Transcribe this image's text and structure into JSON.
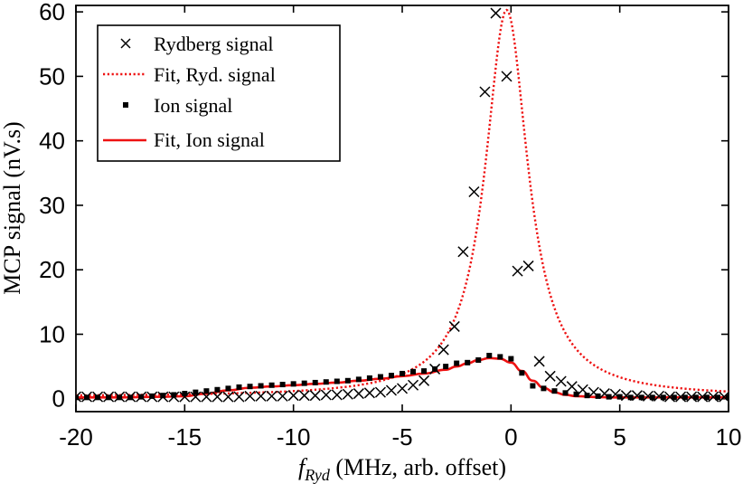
{
  "chart_data": {
    "type": "scatter",
    "xlabel_symbol": "f",
    "xlabel_subscript": "Ryd",
    "xlabel_rest": " (MHz, arb. offset)",
    "ylabel": "MCP signal (nV.s)",
    "xlim": [
      -20,
      10
    ],
    "ylim": [
      -2,
      61
    ],
    "x_ticks": [
      -20,
      -15,
      -10,
      -5,
      0,
      5,
      10
    ],
    "y_ticks": [
      0,
      10,
      20,
      30,
      40,
      50,
      60
    ],
    "legend": {
      "position": "top-left",
      "entries": [
        "Rydberg signal",
        "Fit, Ryd. signal",
        "Ion signal",
        "Fit, Ion signal"
      ]
    },
    "colors": {
      "fit": "#ee1111",
      "marker": "#000000"
    },
    "series": [
      {
        "name": "Rydberg signal",
        "marker": "x",
        "x": [
          -20,
          -19.5,
          -19,
          -18.5,
          -18,
          -17.5,
          -17,
          -16.5,
          -16,
          -15.5,
          -15,
          -14.5,
          -14,
          -13.5,
          -13,
          -12.5,
          -12,
          -11.5,
          -11,
          -10.5,
          -10,
          -9.5,
          -9,
          -8.5,
          -8,
          -7.5,
          -7,
          -6.5,
          -6,
          -5.5,
          -5,
          -4.5,
          -4,
          -3.5,
          -3.1,
          -2.6,
          -2.2,
          -1.7,
          -1.2,
          -0.7,
          -0.2,
          0.3,
          0.8,
          1.3,
          1.8,
          2.3,
          2.8,
          3.3,
          3.8,
          4.3,
          4.8,
          5.3,
          5.8,
          6.3,
          6.8,
          7.3,
          7.8,
          8.3,
          8.8,
          9.3,
          9.8
        ],
        "y": [
          0.3,
          0.3,
          0.3,
          0.3,
          0.3,
          0.3,
          0.3,
          0.3,
          0.3,
          0.3,
          0.3,
          0.3,
          0.3,
          0.3,
          0.3,
          0.3,
          0.4,
          0.4,
          0.4,
          0.4,
          0.5,
          0.5,
          0.5,
          0.6,
          0.6,
          0.7,
          0.8,
          0.9,
          1.0,
          1.3,
          1.6,
          2.1,
          2.8,
          4.6,
          7.6,
          11.2,
          22.8,
          32.1,
          47.6,
          59.8,
          50.0,
          19.8,
          20.6,
          5.8,
          3.5,
          2.7,
          1.9,
          1.4,
          1.0,
          0.8,
          0.7,
          0.5,
          0.5,
          0.4,
          0.4,
          0.3,
          0.3,
          0.3,
          0.3,
          0.3,
          0.3
        ]
      },
      {
        "name": "Ion signal",
        "marker": "square",
        "x": [
          -20,
          -19.5,
          -19,
          -18.5,
          -18,
          -17.5,
          -17,
          -16.5,
          -16,
          -15.5,
          -15,
          -14.5,
          -14,
          -13.5,
          -13,
          -12.5,
          -12,
          -11.5,
          -11,
          -10.5,
          -10,
          -9.5,
          -9,
          -8.5,
          -8,
          -7.5,
          -7,
          -6.5,
          -6,
          -5.5,
          -5,
          -4.5,
          -4,
          -3.5,
          -3,
          -2.5,
          -2,
          -1.5,
          -1,
          -0.5,
          0,
          0.5,
          1,
          1.5,
          2,
          2.5,
          3,
          3.5,
          4,
          4.5,
          5,
          5.5,
          6,
          6.5,
          7,
          7.5,
          8,
          8.5,
          9,
          9.5,
          10
        ],
        "y": [
          0.2,
          0.2,
          0.2,
          0.2,
          0.2,
          0.2,
          0.3,
          0.4,
          0.5,
          0.6,
          0.8,
          1.0,
          1.2,
          1.4,
          1.6,
          1.8,
          1.9,
          2.0,
          2.1,
          2.2,
          2.3,
          2.4,
          2.5,
          2.6,
          2.7,
          2.8,
          3.0,
          3.2,
          3.4,
          3.6,
          3.9,
          4.2,
          4.3,
          4.6,
          5.0,
          5.5,
          5.6,
          6.0,
          6.7,
          6.5,
          6.2,
          4.0,
          2.0,
          1.6,
          1.2,
          0.9,
          0.7,
          0.5,
          0.4,
          0.3,
          0.3,
          0.2,
          0.2,
          0.2,
          0.2,
          0.2,
          0.2,
          0.2,
          0.2,
          0.2,
          0.2
        ]
      },
      {
        "name": "Fit, Ryd. signal",
        "line": "dotted",
        "model": "lorentzian",
        "center": -0.2,
        "hwhm": 1.2,
        "amplitude": 60,
        "offset": 0.3
      },
      {
        "name": "Fit, Ion signal",
        "line": "solid",
        "model": "shoulder-peak",
        "x": [
          -20,
          -18,
          -16,
          -15,
          -14,
          -13,
          -12,
          -11,
          -10,
          -9,
          -8,
          -7,
          -6,
          -5,
          -4,
          -3,
          -2.5,
          -2,
          -1.5,
          -1,
          -0.5,
          0,
          0.5,
          1,
          1.5,
          2,
          2.5,
          3,
          4,
          5,
          6,
          8,
          10
        ],
        "y": [
          0.2,
          0.2,
          0.3,
          0.4,
          0.8,
          1.3,
          1.7,
          1.9,
          2.1,
          2.3,
          2.5,
          2.8,
          3.1,
          3.5,
          3.9,
          4.5,
          5.0,
          5.5,
          6.0,
          6.3,
          6.2,
          5.6,
          4.3,
          2.8,
          1.7,
          1.0,
          0.6,
          0.4,
          0.25,
          0.2,
          0.2,
          0.2,
          0.2
        ]
      }
    ]
  }
}
